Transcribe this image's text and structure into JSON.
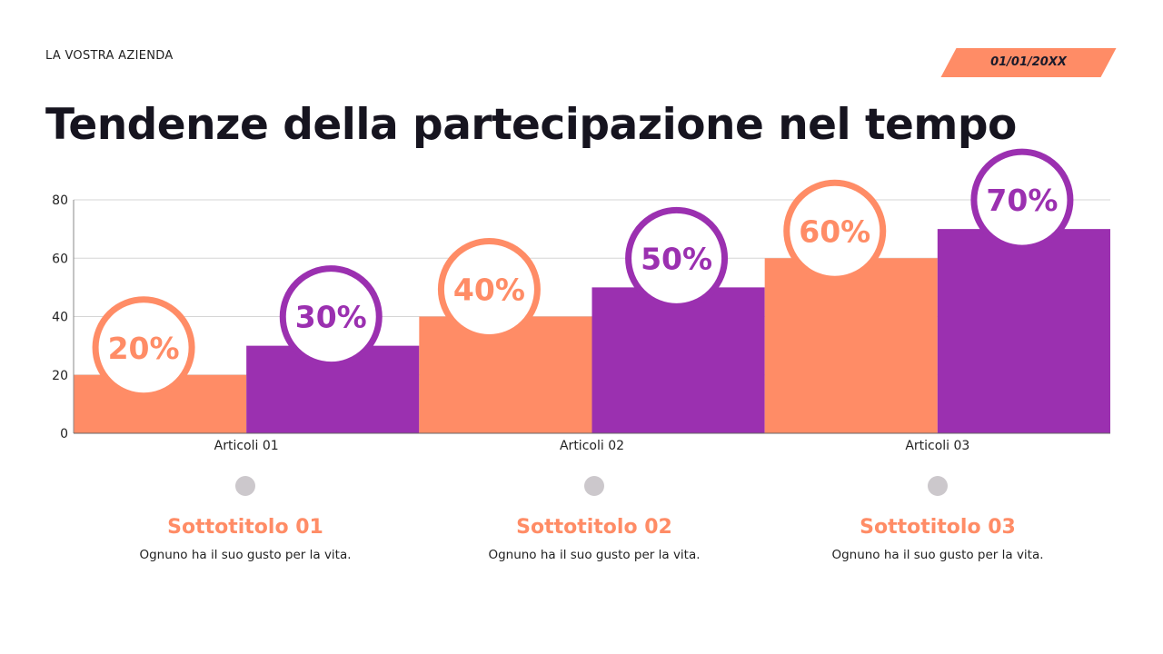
{
  "header": {
    "company": "LA VOSTRA AZIENDA",
    "date": "01/01/20XX",
    "title": "Tendenze della partecipazione nel tempo"
  },
  "chart_data": {
    "type": "bar",
    "categories": [
      "Articoli 01",
      "Articoli 02",
      "Articoli 03"
    ],
    "series": [
      {
        "values": [
          20,
          40,
          60
        ],
        "color": "#ff8c66",
        "labels": [
          "20%",
          "40%",
          "60%"
        ]
      },
      {
        "values": [
          30,
          50,
          70
        ],
        "color": "#9b30b0",
        "labels": [
          "30%",
          "50%",
          "70%"
        ]
      }
    ],
    "ylim": [
      0,
      80
    ],
    "yticks": [
      0,
      20,
      40,
      60,
      80
    ],
    "grid": true
  },
  "subtitles": [
    {
      "title": "Sottotitolo 01",
      "text": "Ognuno ha il suo gusto per la vita."
    },
    {
      "title": "Sottotitolo 02",
      "text": "Ognuno ha il suo gusto per la vita."
    },
    {
      "title": "Sottotitolo 03",
      "text": "Ognuno ha il suo gusto per la vita."
    }
  ]
}
